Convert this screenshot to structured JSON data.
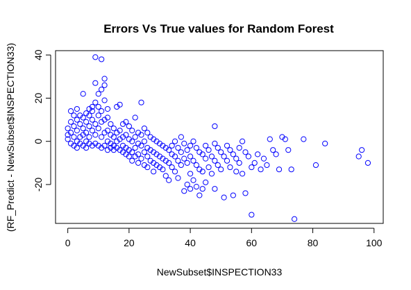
{
  "chart_data": {
    "type": "scatter",
    "title": "Errors Vs True values for Random Forest",
    "xlabel": "NewSubset$INSPECTION33",
    "ylabel": "(RF_Predict - NewSubset$INSPECTION33)",
    "xlim": [
      -4,
      103
    ],
    "ylim": [
      -38,
      42
    ],
    "xticks": [
      0,
      20,
      40,
      60,
      80,
      100
    ],
    "yticks": [
      -20,
      0,
      20,
      40
    ],
    "grid": false,
    "marker": "open-circle",
    "color": "#0000ff",
    "series": [
      {
        "points": [
          [
            0,
            6
          ],
          [
            0,
            1
          ],
          [
            0,
            3
          ],
          [
            1,
            9
          ],
          [
            1,
            14
          ],
          [
            1,
            4
          ],
          [
            1,
            -1
          ],
          [
            2,
            2
          ],
          [
            2,
            7
          ],
          [
            2,
            12
          ],
          [
            2,
            -2
          ],
          [
            3,
            5
          ],
          [
            3,
            10
          ],
          [
            3,
            15
          ],
          [
            3,
            0
          ],
          [
            3,
            -3
          ],
          [
            4,
            8
          ],
          [
            4,
            12
          ],
          [
            4,
            2
          ],
          [
            4,
            -1
          ],
          [
            5,
            6
          ],
          [
            5,
            11
          ],
          [
            5,
            22
          ],
          [
            5,
            -2
          ],
          [
            5,
            3
          ],
          [
            6,
            9
          ],
          [
            6,
            13
          ],
          [
            6,
            0
          ],
          [
            6,
            -3
          ],
          [
            6,
            4
          ],
          [
            7,
            7
          ],
          [
            7,
            12
          ],
          [
            7,
            15
          ],
          [
            7,
            -1
          ],
          [
            7,
            2
          ],
          [
            8,
            10
          ],
          [
            8,
            14
          ],
          [
            8,
            16
          ],
          [
            8,
            -2
          ],
          [
            8,
            5
          ],
          [
            9,
            39
          ],
          [
            9,
            27
          ],
          [
            9,
            18
          ],
          [
            9,
            8
          ],
          [
            9,
            -1
          ],
          [
            9,
            3
          ],
          [
            10,
            22
          ],
          [
            10,
            16
          ],
          [
            10,
            12
          ],
          [
            10,
            6
          ],
          [
            10,
            -2
          ],
          [
            11,
            38
          ],
          [
            11,
            24
          ],
          [
            11,
            14
          ],
          [
            11,
            9
          ],
          [
            11,
            2
          ],
          [
            11,
            -3
          ],
          [
            12,
            29
          ],
          [
            12,
            26
          ],
          [
            12,
            19
          ],
          [
            12,
            10
          ],
          [
            12,
            4
          ],
          [
            12,
            -2
          ],
          [
            13,
            15
          ],
          [
            13,
            11
          ],
          [
            13,
            5
          ],
          [
            13,
            0
          ],
          [
            13,
            -4
          ],
          [
            14,
            8
          ],
          [
            14,
            3
          ],
          [
            14,
            -1
          ],
          [
            14,
            -3
          ],
          [
            15,
            6
          ],
          [
            15,
            2
          ],
          [
            15,
            -2
          ],
          [
            15,
            -4
          ],
          [
            16,
            16
          ],
          [
            16,
            4
          ],
          [
            16,
            0
          ],
          [
            16,
            -3
          ],
          [
            17,
            17
          ],
          [
            17,
            5
          ],
          [
            17,
            1
          ],
          [
            17,
            -4
          ],
          [
            18,
            8
          ],
          [
            18,
            2
          ],
          [
            18,
            -2
          ],
          [
            18,
            -5
          ],
          [
            19,
            9
          ],
          [
            19,
            3
          ],
          [
            19,
            -3
          ],
          [
            19,
            -6
          ],
          [
            20,
            7
          ],
          [
            20,
            1
          ],
          [
            20,
            -4
          ],
          [
            20,
            -7
          ],
          [
            21,
            5
          ],
          [
            21,
            0
          ],
          [
            21,
            -5
          ],
          [
            21,
            -9
          ],
          [
            22,
            11
          ],
          [
            22,
            2
          ],
          [
            22,
            -3
          ],
          [
            22,
            -7
          ],
          [
            23,
            4
          ],
          [
            23,
            -1
          ],
          [
            23,
            -6
          ],
          [
            23,
            -10
          ],
          [
            24,
            18
          ],
          [
            24,
            3
          ],
          [
            24,
            -2
          ],
          [
            24,
            -8
          ],
          [
            25,
            6
          ],
          [
            25,
            0
          ],
          [
            25,
            -5
          ],
          [
            25,
            -11
          ],
          [
            26,
            4
          ],
          [
            26,
            -3
          ],
          [
            26,
            -7
          ],
          [
            26,
            -12
          ],
          [
            27,
            2
          ],
          [
            27,
            -4
          ],
          [
            27,
            -9
          ],
          [
            28,
            1
          ],
          [
            28,
            -5
          ],
          [
            28,
            -10
          ],
          [
            28,
            -14
          ],
          [
            29,
            0
          ],
          [
            29,
            -6
          ],
          [
            29,
            -11
          ],
          [
            30,
            -1
          ],
          [
            30,
            -7
          ],
          [
            30,
            -12
          ],
          [
            31,
            -2
          ],
          [
            31,
            -8
          ],
          [
            31,
            -13
          ],
          [
            32,
            -3
          ],
          [
            32,
            -9
          ],
          [
            32,
            -16
          ],
          [
            33,
            -4
          ],
          [
            33,
            -10
          ],
          [
            33,
            -18
          ],
          [
            34,
            -2
          ],
          [
            34,
            -6
          ],
          [
            34,
            -12
          ],
          [
            35,
            0
          ],
          [
            35,
            -7
          ],
          [
            35,
            -14
          ],
          [
            36,
            -3
          ],
          [
            36,
            -9
          ],
          [
            36,
            -17
          ],
          [
            37,
            2
          ],
          [
            37,
            -5
          ],
          [
            37,
            -11
          ],
          [
            38,
            -1
          ],
          [
            38,
            -8
          ],
          [
            38,
            -23
          ],
          [
            39,
            -4
          ],
          [
            39,
            -10
          ],
          [
            39,
            -20
          ],
          [
            40,
            -2
          ],
          [
            40,
            -7
          ],
          [
            40,
            -15
          ],
          [
            40,
            -22
          ],
          [
            41,
            0
          ],
          [
            41,
            -9
          ],
          [
            41,
            -18
          ],
          [
            42,
            -3
          ],
          [
            42,
            -11
          ],
          [
            42,
            -21
          ],
          [
            43,
            -5
          ],
          [
            43,
            -13
          ],
          [
            43,
            -25
          ],
          [
            44,
            -6
          ],
          [
            44,
            -14
          ],
          [
            44,
            -22
          ],
          [
            45,
            -2
          ],
          [
            45,
            -8
          ],
          [
            45,
            -19
          ],
          [
            46,
            -4
          ],
          [
            46,
            -12
          ],
          [
            47,
            -7
          ],
          [
            47,
            -15
          ],
          [
            48,
            7
          ],
          [
            48,
            -1
          ],
          [
            48,
            -9
          ],
          [
            48,
            -22
          ],
          [
            49,
            -3
          ],
          [
            49,
            -11
          ],
          [
            50,
            -5
          ],
          [
            50,
            -13
          ],
          [
            51,
            -7
          ],
          [
            51,
            -26
          ],
          [
            52,
            -2
          ],
          [
            52,
            -9
          ],
          [
            53,
            -4
          ],
          [
            53,
            -12
          ],
          [
            54,
            -25
          ],
          [
            54,
            -6
          ],
          [
            55,
            -8
          ],
          [
            55,
            -14
          ],
          [
            56,
            -3
          ],
          [
            56,
            -10
          ],
          [
            57,
            0
          ],
          [
            57,
            -15
          ],
          [
            58,
            -24
          ],
          [
            58,
            -5
          ],
          [
            59,
            -7
          ],
          [
            60,
            -12
          ],
          [
            60,
            -34
          ],
          [
            61,
            -10
          ],
          [
            62,
            -6
          ],
          [
            63,
            -13
          ],
          [
            64,
            -8
          ],
          [
            65,
            -11
          ],
          [
            66,
            1
          ],
          [
            67,
            -4
          ],
          [
            68,
            -6
          ],
          [
            69,
            -13
          ],
          [
            70,
            2
          ],
          [
            71,
            1
          ],
          [
            72,
            -4
          ],
          [
            73,
            -13
          ],
          [
            74,
            -36
          ],
          [
            77,
            1
          ],
          [
            81,
            -11
          ],
          [
            84,
            -1
          ],
          [
            95,
            -7
          ],
          [
            96,
            -4
          ],
          [
            98,
            -10
          ]
        ]
      }
    ]
  }
}
